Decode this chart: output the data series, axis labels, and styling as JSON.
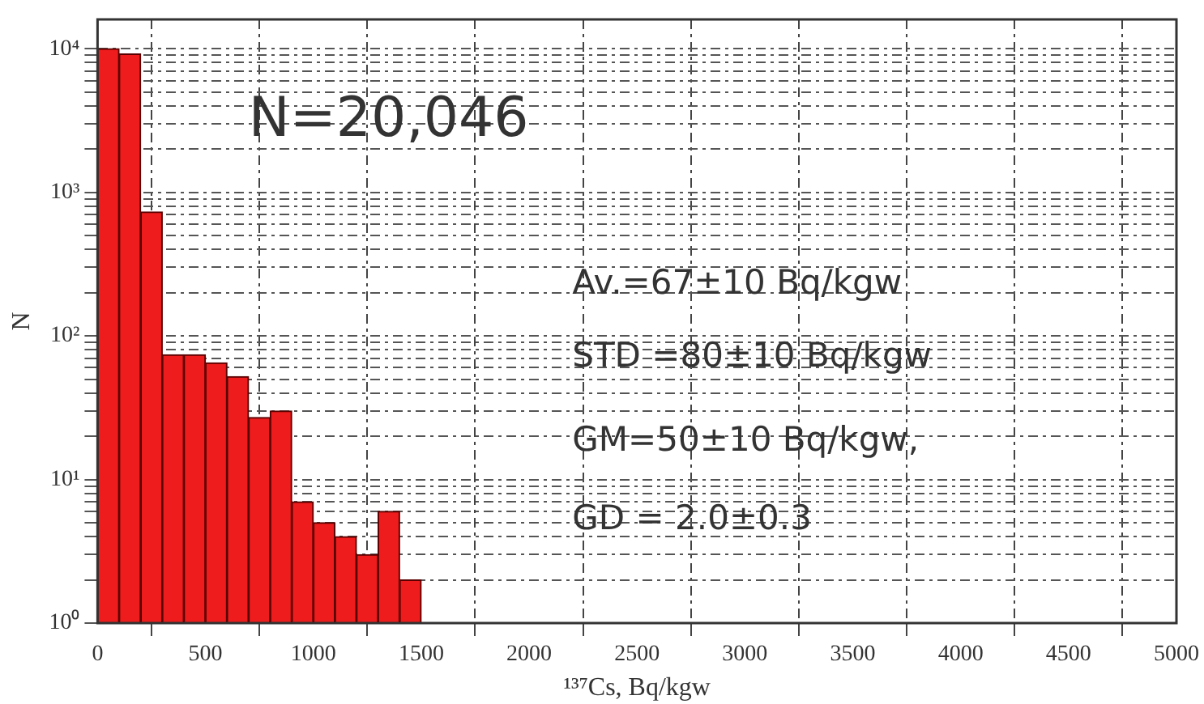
{
  "chart_data": {
    "type": "histogram",
    "bins": [
      0,
      100,
      200,
      300,
      400,
      500,
      600,
      700,
      800,
      900,
      1000,
      1100,
      1200,
      1300,
      1400,
      1500
    ],
    "values": [
      10000,
      9200,
      730,
      74,
      74,
      65,
      52,
      27,
      30,
      7,
      5,
      4,
      3,
      6,
      2
    ],
    "color": "#ee1c1c",
    "xlabel": "¹³⁷Cs, Bq/kgw",
    "ylabel": "N",
    "xlim": [
      0,
      5000
    ],
    "xticks": [
      0,
      500,
      1000,
      1500,
      2000,
      2500,
      3000,
      3500,
      4000,
      4500,
      5000
    ],
    "ylim": [
      1,
      16000
    ],
    "log": "y",
    "yticks": [
      {
        "value": 1,
        "label": "10⁰"
      },
      {
        "value": 2,
        "label": null
      },
      {
        "value": 3,
        "label": null
      },
      {
        "value": 4,
        "label": null
      },
      {
        "value": 5,
        "label": null
      },
      {
        "value": 6,
        "label": null
      },
      {
        "value": 7,
        "label": null
      },
      {
        "value": 8,
        "label": null
      },
      {
        "value": 9,
        "label": null
      },
      {
        "value": 10,
        "label": "10¹"
      },
      {
        "value": 20,
        "label": null
      },
      {
        "value": 30,
        "label": null
      },
      {
        "value": 40,
        "label": null
      },
      {
        "value": 50,
        "label": null
      },
      {
        "value": 60,
        "label": null
      },
      {
        "value": 70,
        "label": null
      },
      {
        "value": 80,
        "label": null
      },
      {
        "value": 90,
        "label": null
      },
      {
        "value": 100,
        "label": "10²"
      },
      {
        "value": 200,
        "label": null
      },
      {
        "value": 300,
        "label": null
      },
      {
        "value": 400,
        "label": null
      },
      {
        "value": 500,
        "label": null
      },
      {
        "value": 600,
        "label": null
      },
      {
        "value": 700,
        "label": null
      },
      {
        "value": 800,
        "label": null
      },
      {
        "value": 900,
        "label": null
      },
      {
        "value": 1000,
        "label": "10³"
      },
      {
        "value": 2000,
        "label": null
      },
      {
        "value": 3000,
        "label": null
      },
      {
        "value": 4000,
        "label": null
      },
      {
        "value": 5000,
        "label": null
      },
      {
        "value": 6000,
        "label": null
      },
      {
        "value": 7000,
        "label": null
      },
      {
        "value": 8000,
        "label": null
      },
      {
        "value": 9000,
        "label": null
      },
      {
        "value": 10000,
        "label": "10⁴"
      }
    ],
    "grid": true,
    "annotations": [
      "N=20,046",
      "Av.=67±10 Bq/kgw",
      "STD =80±10 Bq/kgw",
      "GM=50±10 Bq/kgw,",
      "GD = 2.0±0.3"
    ]
  }
}
